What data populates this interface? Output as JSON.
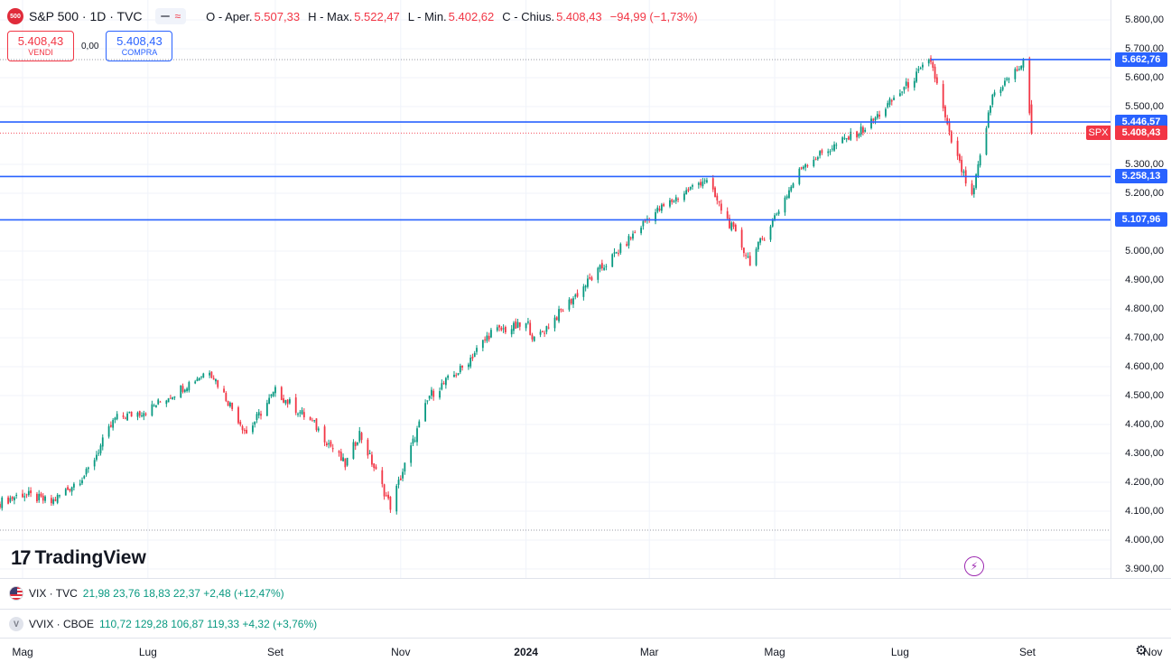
{
  "header": {
    "logo_text": "500",
    "symbol": "S&P 500 · 1D · TVC",
    "pill_wave": "≈",
    "open_key": "O - Aper.",
    "open_val": "5.507,33",
    "high_key": "H - Max.",
    "high_val": "5.522,47",
    "low_key": "L - Min.",
    "low_val": "5.402,62",
    "close_key": "C - Chius.",
    "close_val": "5.408,43",
    "change": "−94,99 (−1,73%)"
  },
  "trade": {
    "sell_price": "5.408,43",
    "sell_label": "VENDI",
    "spread": "0,00",
    "buy_price": "5.408,43",
    "buy_label": "COMPRA"
  },
  "brand": {
    "name": "TradingView",
    "mark": "17"
  },
  "price_axis": {
    "ticks": [
      "5.800,00",
      "5.700,00",
      "5.600,00",
      "5.500,00",
      "5.300,00",
      "5.200,00",
      "5.000,00",
      "4.900,00",
      "4.800,00",
      "4.700,00",
      "4.600,00",
      "4.500,00",
      "4.400,00",
      "4.300,00",
      "4.200,00",
      "4.100,00",
      "4.000,00",
      "3.900,00"
    ],
    "tick_values": [
      5800,
      5700,
      5600,
      5500,
      5300,
      5200,
      5000,
      4900,
      4800,
      4700,
      4600,
      4500,
      4400,
      4300,
      4200,
      4100,
      4000,
      3900
    ]
  },
  "levels": [
    {
      "label": "5.662,76",
      "value": 5662.76
    },
    {
      "label": "5.446,57",
      "value": 5446.57
    },
    {
      "label": "5.258,13",
      "value": 5258.13
    },
    {
      "label": "5.107,96",
      "value": 5107.96
    }
  ],
  "last_price": {
    "label": "5.408,43",
    "value": 5408.43,
    "tag": "SPX"
  },
  "colors": {
    "up": "#089981",
    "down": "#f23645",
    "level": "#2962ff"
  },
  "indicators": {
    "vix": {
      "name": "VIX · TVC",
      "values": "21,98  23,76  18,83  22,37  +2,48 (+12,47%)"
    },
    "vvix": {
      "name": "VVIX · CBOE",
      "icon_letter": "V",
      "values": "110,72  129,28  106,87  119,33  +4,32 (+3,76%)"
    }
  },
  "time_axis": {
    "labels": [
      {
        "text": "Mag",
        "bold": false
      },
      {
        "text": "Lug",
        "bold": false
      },
      {
        "text": "Set",
        "bold": false
      },
      {
        "text": "Nov",
        "bold": false
      },
      {
        "text": "2024",
        "bold": true
      },
      {
        "text": "Mar",
        "bold": false
      },
      {
        "text": "Mag",
        "bold": false
      },
      {
        "text": "Lug",
        "bold": false
      },
      {
        "text": "Set",
        "bold": false
      },
      {
        "text": "Nov",
        "bold": false
      }
    ]
  },
  "chart_data": {
    "type": "candlestick",
    "series_key_points": [
      {
        "date": "2023-04-20",
        "close": 4130
      },
      {
        "date": "2023-05-01",
        "close": 4160
      },
      {
        "date": "2023-05-15",
        "close": 4130
      },
      {
        "date": "2023-06-01",
        "close": 4230
      },
      {
        "date": "2023-06-15",
        "close": 4420
      },
      {
        "date": "2023-07-01",
        "close": 4450
      },
      {
        "date": "2023-07-31",
        "close": 4590
      },
      {
        "date": "2023-08-18",
        "close": 4370
      },
      {
        "date": "2023-09-01",
        "close": 4515
      },
      {
        "date": "2023-09-20",
        "close": 4400
      },
      {
        "date": "2023-10-05",
        "close": 4260
      },
      {
        "date": "2023-10-12",
        "close": 4370
      },
      {
        "date": "2023-10-27",
        "close": 4117
      },
      {
        "date": "2023-11-15",
        "close": 4500
      },
      {
        "date": "2023-12-01",
        "close": 4595
      },
      {
        "date": "2023-12-15",
        "close": 4720
      },
      {
        "date": "2024-01-02",
        "close": 4745
      },
      {
        "date": "2024-01-05",
        "close": 4690
      },
      {
        "date": "2024-02-01",
        "close": 4900
      },
      {
        "date": "2024-02-15",
        "close": 5000
      },
      {
        "date": "2024-03-01",
        "close": 5120
      },
      {
        "date": "2024-03-28",
        "close": 5250
      },
      {
        "date": "2024-04-19",
        "close": 4965
      },
      {
        "date": "2024-05-15",
        "close": 5300
      },
      {
        "date": "2024-06-15",
        "close": 5430
      },
      {
        "date": "2024-07-16",
        "close": 5660
      },
      {
        "date": "2024-07-25",
        "close": 5400
      },
      {
        "date": "2024-08-05",
        "close": 5180
      },
      {
        "date": "2024-08-15",
        "close": 5540
      },
      {
        "date": "2024-08-30",
        "close": 5650
      },
      {
        "date": "2024-09-03",
        "close": 5408.43
      }
    ],
    "ylim": [
      3900,
      5830
    ],
    "grid": true
  }
}
